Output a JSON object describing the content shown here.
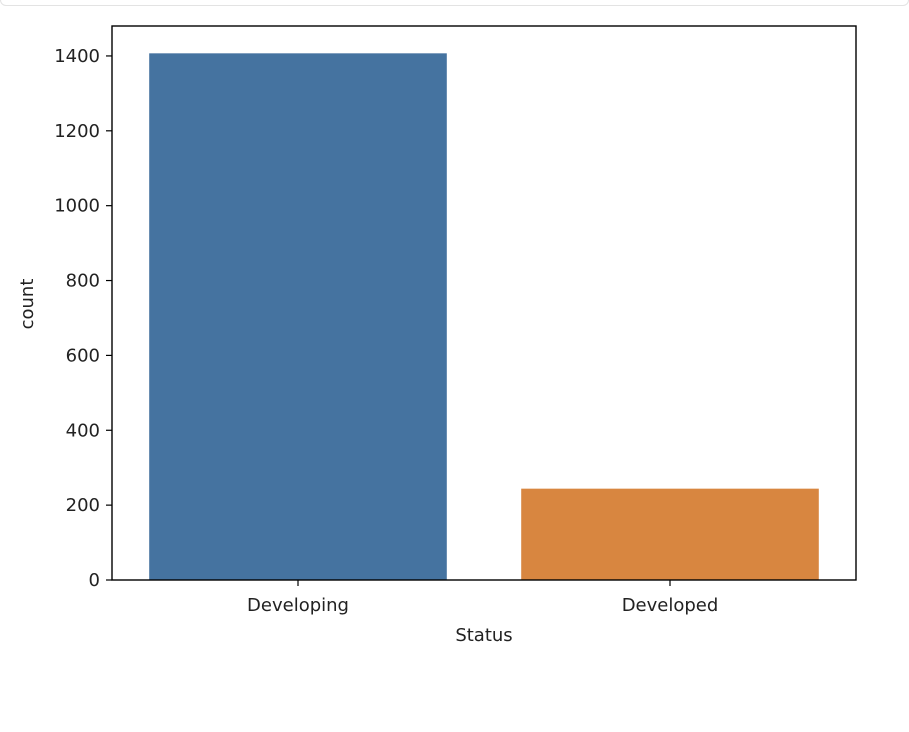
{
  "chart_data": {
    "type": "bar",
    "categories": [
      "Developing",
      "Developed"
    ],
    "values": [
      1407,
      244
    ],
    "xlabel": "Status",
    "ylabel": "count",
    "ylim": [
      0,
      1480
    ],
    "yticks": [
      0,
      200,
      400,
      600,
      800,
      1000,
      1200,
      1400
    ],
    "colors": [
      "#4573a0",
      "#d88640"
    ],
    "grid": false,
    "legend": "none"
  }
}
